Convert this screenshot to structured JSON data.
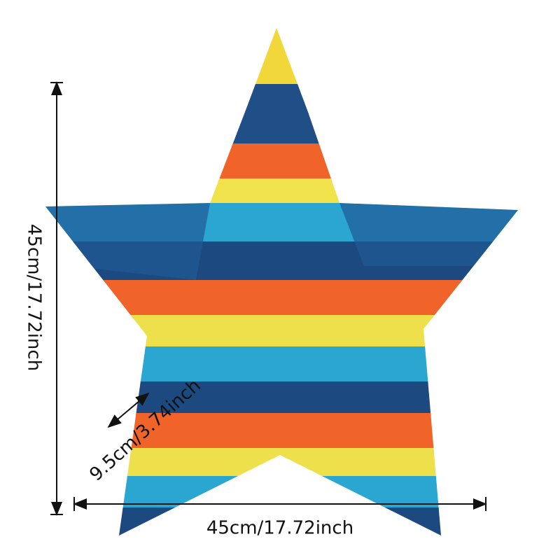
{
  "dimensions": {
    "height": "45cm/17.72inch",
    "width": "45cm/17.72inch",
    "depth": "9.5cm/3.74inch"
  }
}
